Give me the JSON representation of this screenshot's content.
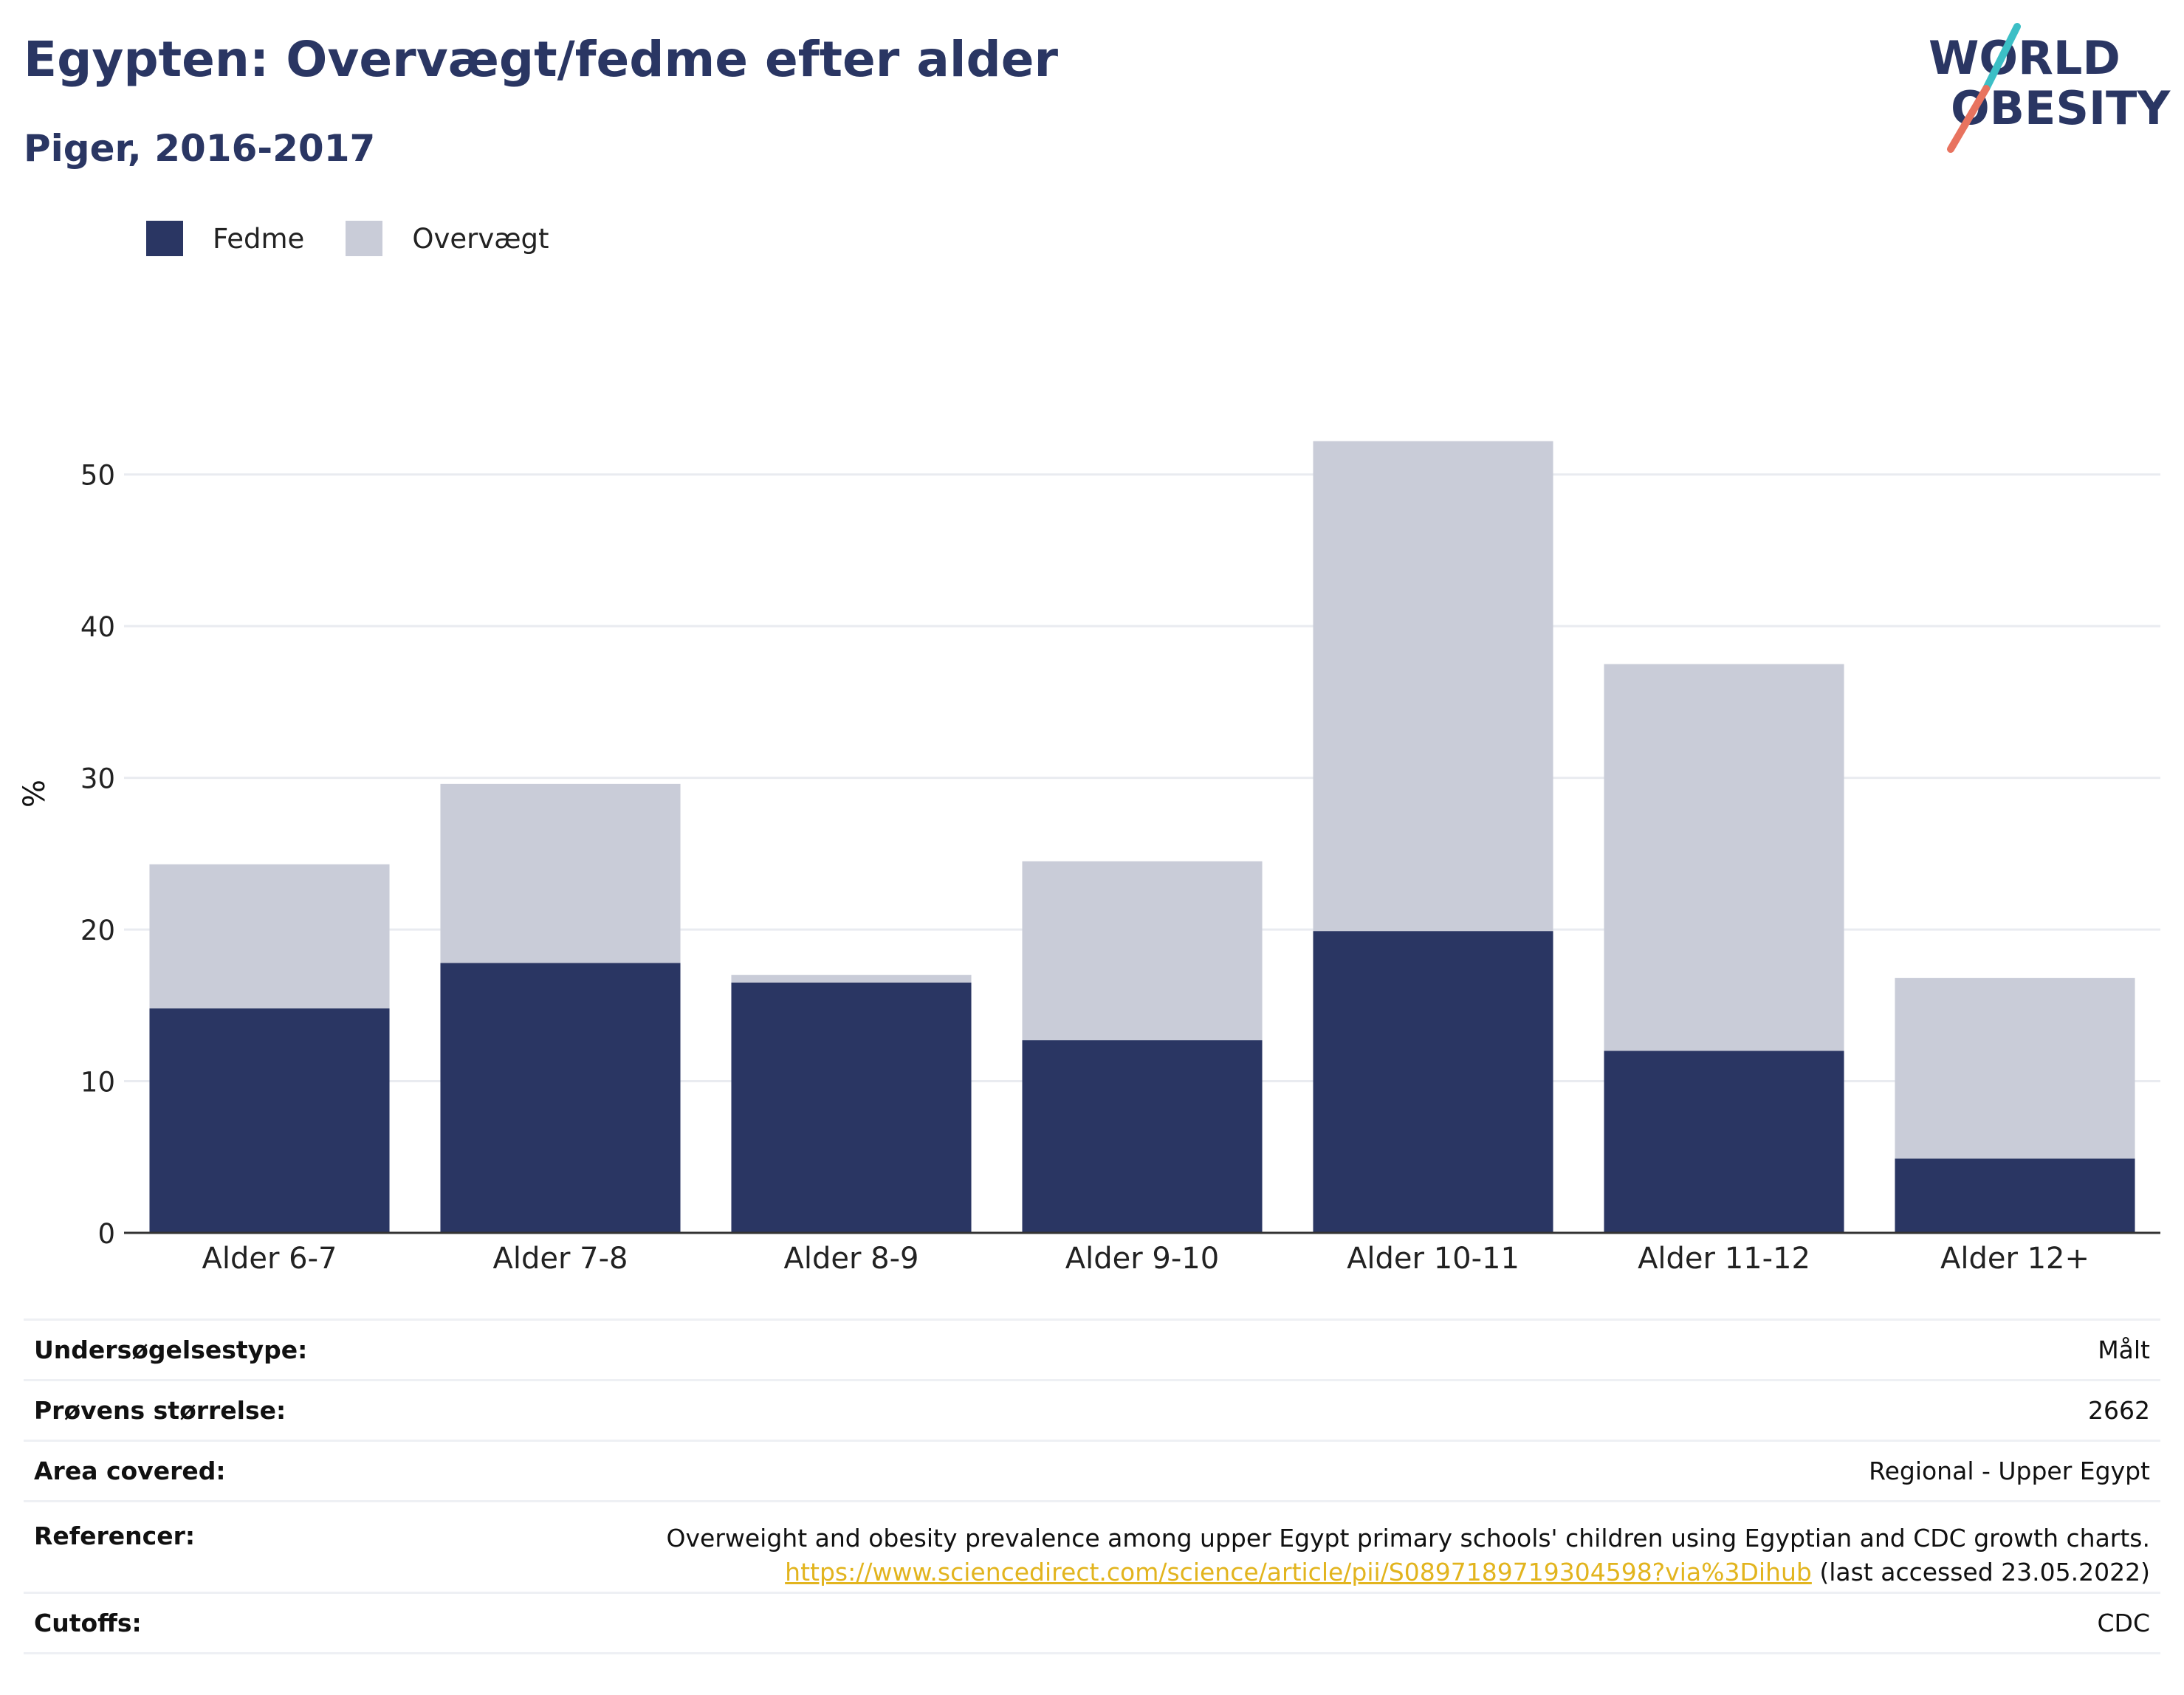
{
  "header": {
    "title": "Egypten: Overvægt/fedme efter alder",
    "subtitle": "Piger, 2016-2017"
  },
  "logo": {
    "line1": "WORLD",
    "line2": "OBESITY",
    "colors": {
      "text": "#2a3663",
      "slash_top": "#3cbfc6",
      "slash_bottom": "#e8735f"
    }
  },
  "legend": {
    "items": [
      {
        "label": "Fedme",
        "color": "#2a3663"
      },
      {
        "label": "Overvægt",
        "color": "#c9ccd8"
      }
    ]
  },
  "chart_data": {
    "type": "bar",
    "stacked": true,
    "categories": [
      "Alder 6-7",
      "Alder 7-8",
      "Alder 8-9",
      "Alder 9-10",
      "Alder 10-11",
      "Alder 11-12",
      "Alder 12+"
    ],
    "series": [
      {
        "name": "Fedme",
        "color": "#2a3663",
        "values": [
          14.8,
          17.8,
          16.5,
          12.7,
          19.9,
          12.0,
          4.9
        ]
      },
      {
        "name": "Overvægt",
        "color": "#c9ccd8",
        "values": [
          9.5,
          11.8,
          0.5,
          11.8,
          32.3,
          25.5,
          11.9
        ]
      }
    ],
    "title": "Egypten: Overvægt/fedme efter alder",
    "subtitle": "Piger, 2016-2017",
    "xlabel": "",
    "ylabel": "%",
    "ylim": [
      0,
      55
    ],
    "yticks": [
      0,
      10,
      20,
      30,
      40,
      50
    ],
    "grid": true,
    "legend_position": "top-left"
  },
  "info": {
    "survey_type_label": "Undersøgelsestype:",
    "survey_type_value": "Målt",
    "sample_size_label": "Prøvens størrelse:",
    "sample_size_value": "2662",
    "area_label": "Area covered:",
    "area_value": "Regional - Upper Egypt",
    "references_label": "Referencer:",
    "references_text": "Overweight and obesity prevalence among upper Egypt primary schools' children using Egyptian and CDC growth charts.",
    "references_link": "https://www.sciencedirect.com/science/article/pii/S0897189719304598?via%3Dihub",
    "references_accessed": "(last accessed 23.05.2022)",
    "cutoffs_label": "Cutoffs:",
    "cutoffs_value": "CDC"
  }
}
